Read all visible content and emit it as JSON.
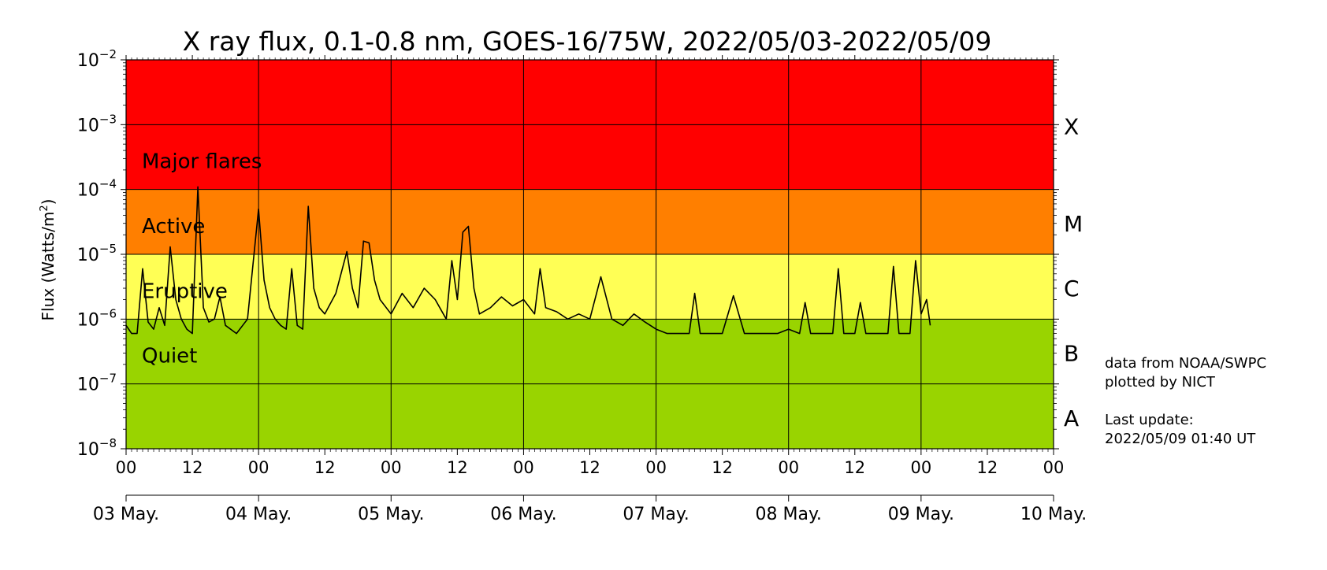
{
  "chart_data": {
    "type": "line",
    "title": "X ray flux, 0.1-0.8 nm, GOES-16/75W, 2022/05/03-2022/05/09",
    "xlabel": "",
    "ylabel": "Flux (Watts/m²)",
    "yscale": "log",
    "ylim": [
      1e-08,
      0.01
    ],
    "xlim": [
      "2022-05-03 00:00",
      "2022-05-10 00:00"
    ],
    "grid": true,
    "y_ticks": [
      {
        "value": 1e-08,
        "base": "10",
        "exp": "−8"
      },
      {
        "value": 1e-07,
        "base": "10",
        "exp": "−7"
      },
      {
        "value": 1e-06,
        "base": "10",
        "exp": "−6"
      },
      {
        "value": 1e-05,
        "base": "10",
        "exp": "−5"
      },
      {
        "value": 0.0001,
        "base": "10",
        "exp": "−4"
      },
      {
        "value": 0.001,
        "base": "10",
        "exp": "−3"
      },
      {
        "value": 0.01,
        "base": "10",
        "exp": "−2"
      }
    ],
    "x_hour_ticks": [
      "00",
      "12",
      "00",
      "12",
      "00",
      "12",
      "00",
      "12",
      "00",
      "12",
      "00",
      "12",
      "00",
      "12",
      "00"
    ],
    "x_day_ticks": [
      "03 May.",
      "04 May.",
      "05 May.",
      "06 May.",
      "07 May.",
      "08 May.",
      "09 May.",
      "10 May."
    ],
    "bands": [
      {
        "label": "Major flares",
        "class": "X",
        "from": 0.0001,
        "to": 0.01,
        "color": "#ff0000"
      },
      {
        "label": "Active",
        "class": "M",
        "from": 1e-05,
        "to": 0.0001,
        "color": "#ff7f00"
      },
      {
        "label": "Eruptive",
        "class": "C",
        "from": 1e-06,
        "to": 1e-05,
        "color": "#ffff55"
      },
      {
        "label": "Quiet",
        "class": "B",
        "from": 1e-07,
        "to": 1e-06,
        "color": "#99d400"
      },
      {
        "label": "",
        "class": "A",
        "from": 1e-08,
        "to": 1e-07,
        "color": "#99d400"
      }
    ],
    "series": [
      {
        "color": "#000000",
        "x": [
          "2022-05-03 00:00",
          "2022-05-03 01:00",
          "2022-05-03 02:00",
          "2022-05-03 03:00",
          "2022-05-03 04:00",
          "2022-05-03 05:00",
          "2022-05-03 06:00",
          "2022-05-03 07:00",
          "2022-05-03 08:00",
          "2022-05-03 09:00",
          "2022-05-03 10:00",
          "2022-05-03 11:00",
          "2022-05-03 12:00",
          "2022-05-03 13:00",
          "2022-05-03 14:00",
          "2022-05-03 15:00",
          "2022-05-03 16:00",
          "2022-05-03 17:00",
          "2022-05-03 18:00",
          "2022-05-03 20:00",
          "2022-05-03 22:00",
          "2022-05-04 00:00",
          "2022-05-04 01:00",
          "2022-05-04 02:00",
          "2022-05-04 03:00",
          "2022-05-04 04:00",
          "2022-05-04 05:00",
          "2022-05-04 06:00",
          "2022-05-04 07:00",
          "2022-05-04 08:00",
          "2022-05-04 09:00",
          "2022-05-04 10:00",
          "2022-05-04 11:00",
          "2022-05-04 12:00",
          "2022-05-04 14:00",
          "2022-05-04 16:00",
          "2022-05-04 17:00",
          "2022-05-04 18:00",
          "2022-05-04 19:00",
          "2022-05-04 20:00",
          "2022-05-04 21:00",
          "2022-05-04 22:00",
          "2022-05-05 00:00",
          "2022-05-05 02:00",
          "2022-05-05 04:00",
          "2022-05-05 06:00",
          "2022-05-05 08:00",
          "2022-05-05 10:00",
          "2022-05-05 11:00",
          "2022-05-05 12:00",
          "2022-05-05 13:00",
          "2022-05-05 14:00",
          "2022-05-05 15:00",
          "2022-05-05 16:00",
          "2022-05-05 18:00",
          "2022-05-05 20:00",
          "2022-05-05 22:00",
          "2022-05-06 00:00",
          "2022-05-06 02:00",
          "2022-05-06 03:00",
          "2022-05-06 04:00",
          "2022-05-06 06:00",
          "2022-05-06 08:00",
          "2022-05-06 10:00",
          "2022-05-06 12:00",
          "2022-05-06 14:00",
          "2022-05-06 16:00",
          "2022-05-06 18:00",
          "2022-05-06 20:00",
          "2022-05-06 22:00",
          "2022-05-07 00:00",
          "2022-05-07 02:00",
          "2022-05-07 04:00",
          "2022-05-07 06:00",
          "2022-05-07 07:00",
          "2022-05-07 08:00",
          "2022-05-07 10:00",
          "2022-05-07 12:00",
          "2022-05-07 14:00",
          "2022-05-07 16:00",
          "2022-05-07 18:00",
          "2022-05-07 20:00",
          "2022-05-07 22:00",
          "2022-05-08 00:00",
          "2022-05-08 02:00",
          "2022-05-08 03:00",
          "2022-05-08 04:00",
          "2022-05-08 06:00",
          "2022-05-08 08:00",
          "2022-05-08 09:00",
          "2022-05-08 10:00",
          "2022-05-08 12:00",
          "2022-05-08 13:00",
          "2022-05-08 14:00",
          "2022-05-08 16:00",
          "2022-05-08 18:00",
          "2022-05-08 19:00",
          "2022-05-08 20:00",
          "2022-05-08 22:00",
          "2022-05-08 23:00",
          "2022-05-09 00:00",
          "2022-05-09 01:00",
          "2022-05-09 01:40"
        ],
        "y": [
          8e-07,
          6e-07,
          6e-07,
          6e-06,
          9e-07,
          7e-07,
          1.5e-06,
          8e-07,
          1.3e-05,
          2e-06,
          1e-06,
          7e-07,
          6e-07,
          0.00011,
          1.5e-06,
          9e-07,
          1e-06,
          2.2e-06,
          8e-07,
          6e-07,
          1e-06,
          5e-05,
          4e-06,
          1.5e-06,
          1e-06,
          8e-07,
          7e-07,
          6e-06,
          8e-07,
          7e-07,
          5.5e-05,
          3e-06,
          1.5e-06,
          1.2e-06,
          2.5e-06,
          1.1e-05,
          3e-06,
          1.5e-06,
          1.6e-05,
          1.5e-05,
          4e-06,
          2e-06,
          1.2e-06,
          2.5e-06,
          1.5e-06,
          3e-06,
          2e-06,
          1e-06,
          8e-06,
          2e-06,
          2.2e-05,
          2.7e-05,
          3e-06,
          1.2e-06,
          1.5e-06,
          2.2e-06,
          1.6e-06,
          2e-06,
          1.2e-06,
          6e-06,
          1.5e-06,
          1.3e-06,
          1e-06,
          1.2e-06,
          1e-06,
          4.5e-06,
          1e-06,
          8e-07,
          1.2e-06,
          9e-07,
          7e-07,
          6e-07,
          6e-07,
          6e-07,
          2.5e-06,
          6e-07,
          6e-07,
          6e-07,
          2.3e-06,
          6e-07,
          6e-07,
          6e-07,
          6e-07,
          7e-07,
          6e-07,
          1.8e-06,
          6e-07,
          6e-07,
          6e-07,
          6e-06,
          6e-07,
          6e-07,
          1.8e-06,
          6e-07,
          6e-07,
          6e-07,
          6.5e-06,
          6e-07,
          6e-07,
          8e-06,
          1.2e-06,
          2e-06,
          8e-07
        ]
      }
    ]
  },
  "notes": {
    "line1": "data from NOAA/SWPC",
    "line2": "plotted by NICT",
    "line3": "Last update:",
    "line4": "2022/05/09 01:40 UT"
  }
}
